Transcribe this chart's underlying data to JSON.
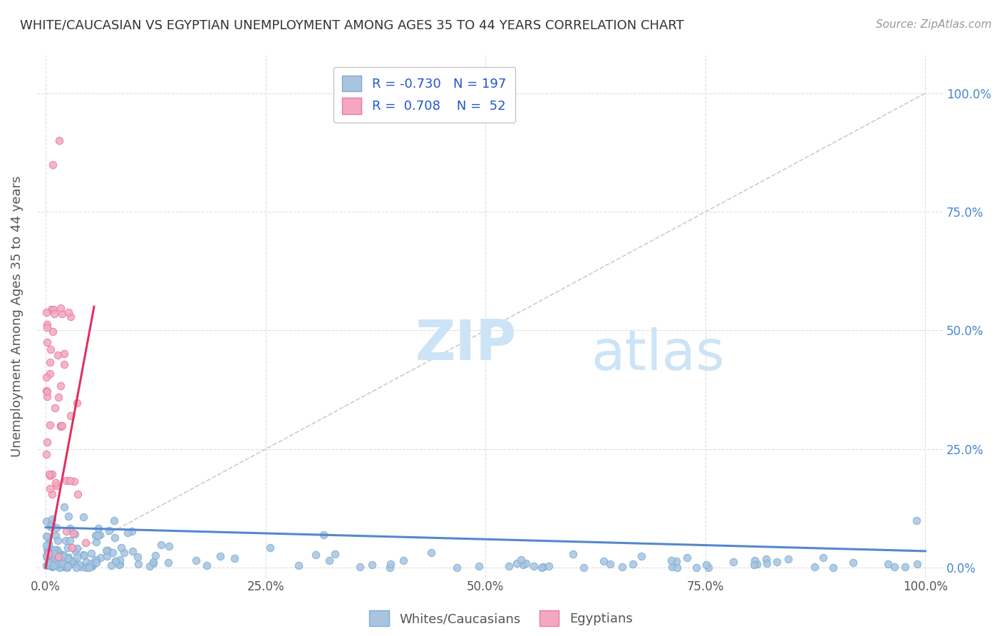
{
  "title": "WHITE/CAUCASIAN VS EGYPTIAN UNEMPLOYMENT AMONG AGES 35 TO 44 YEARS CORRELATION CHART",
  "source": "Source: ZipAtlas.com",
  "ylabel": "Unemployment Among Ages 35 to 44 years",
  "legend_labels": [
    "Whites/Caucasians",
    "Egyptians"
  ],
  "legend_r_white": "-0.730",
  "legend_n_white": "197",
  "legend_r_egyptian": "0.708",
  "legend_n_egyptian": "52",
  "blue_color": "#aac4e0",
  "blue_edge": "#7aafd4",
  "pink_color": "#f4a8c0",
  "pink_edge": "#e87aa0",
  "trend_blue": "#5588cc",
  "trend_pink": "#e03060",
  "ref_line_color": "#cccccc",
  "grid_color": "#dddddd",
  "title_color": "#333333",
  "axis_color": "#555555",
  "r_color": "#2255cc",
  "watermark_color": "#cce4f5",
  "background": "#ffffff",
  "xlim": [
    -1,
    102
  ],
  "ylim": [
    -2,
    108
  ]
}
